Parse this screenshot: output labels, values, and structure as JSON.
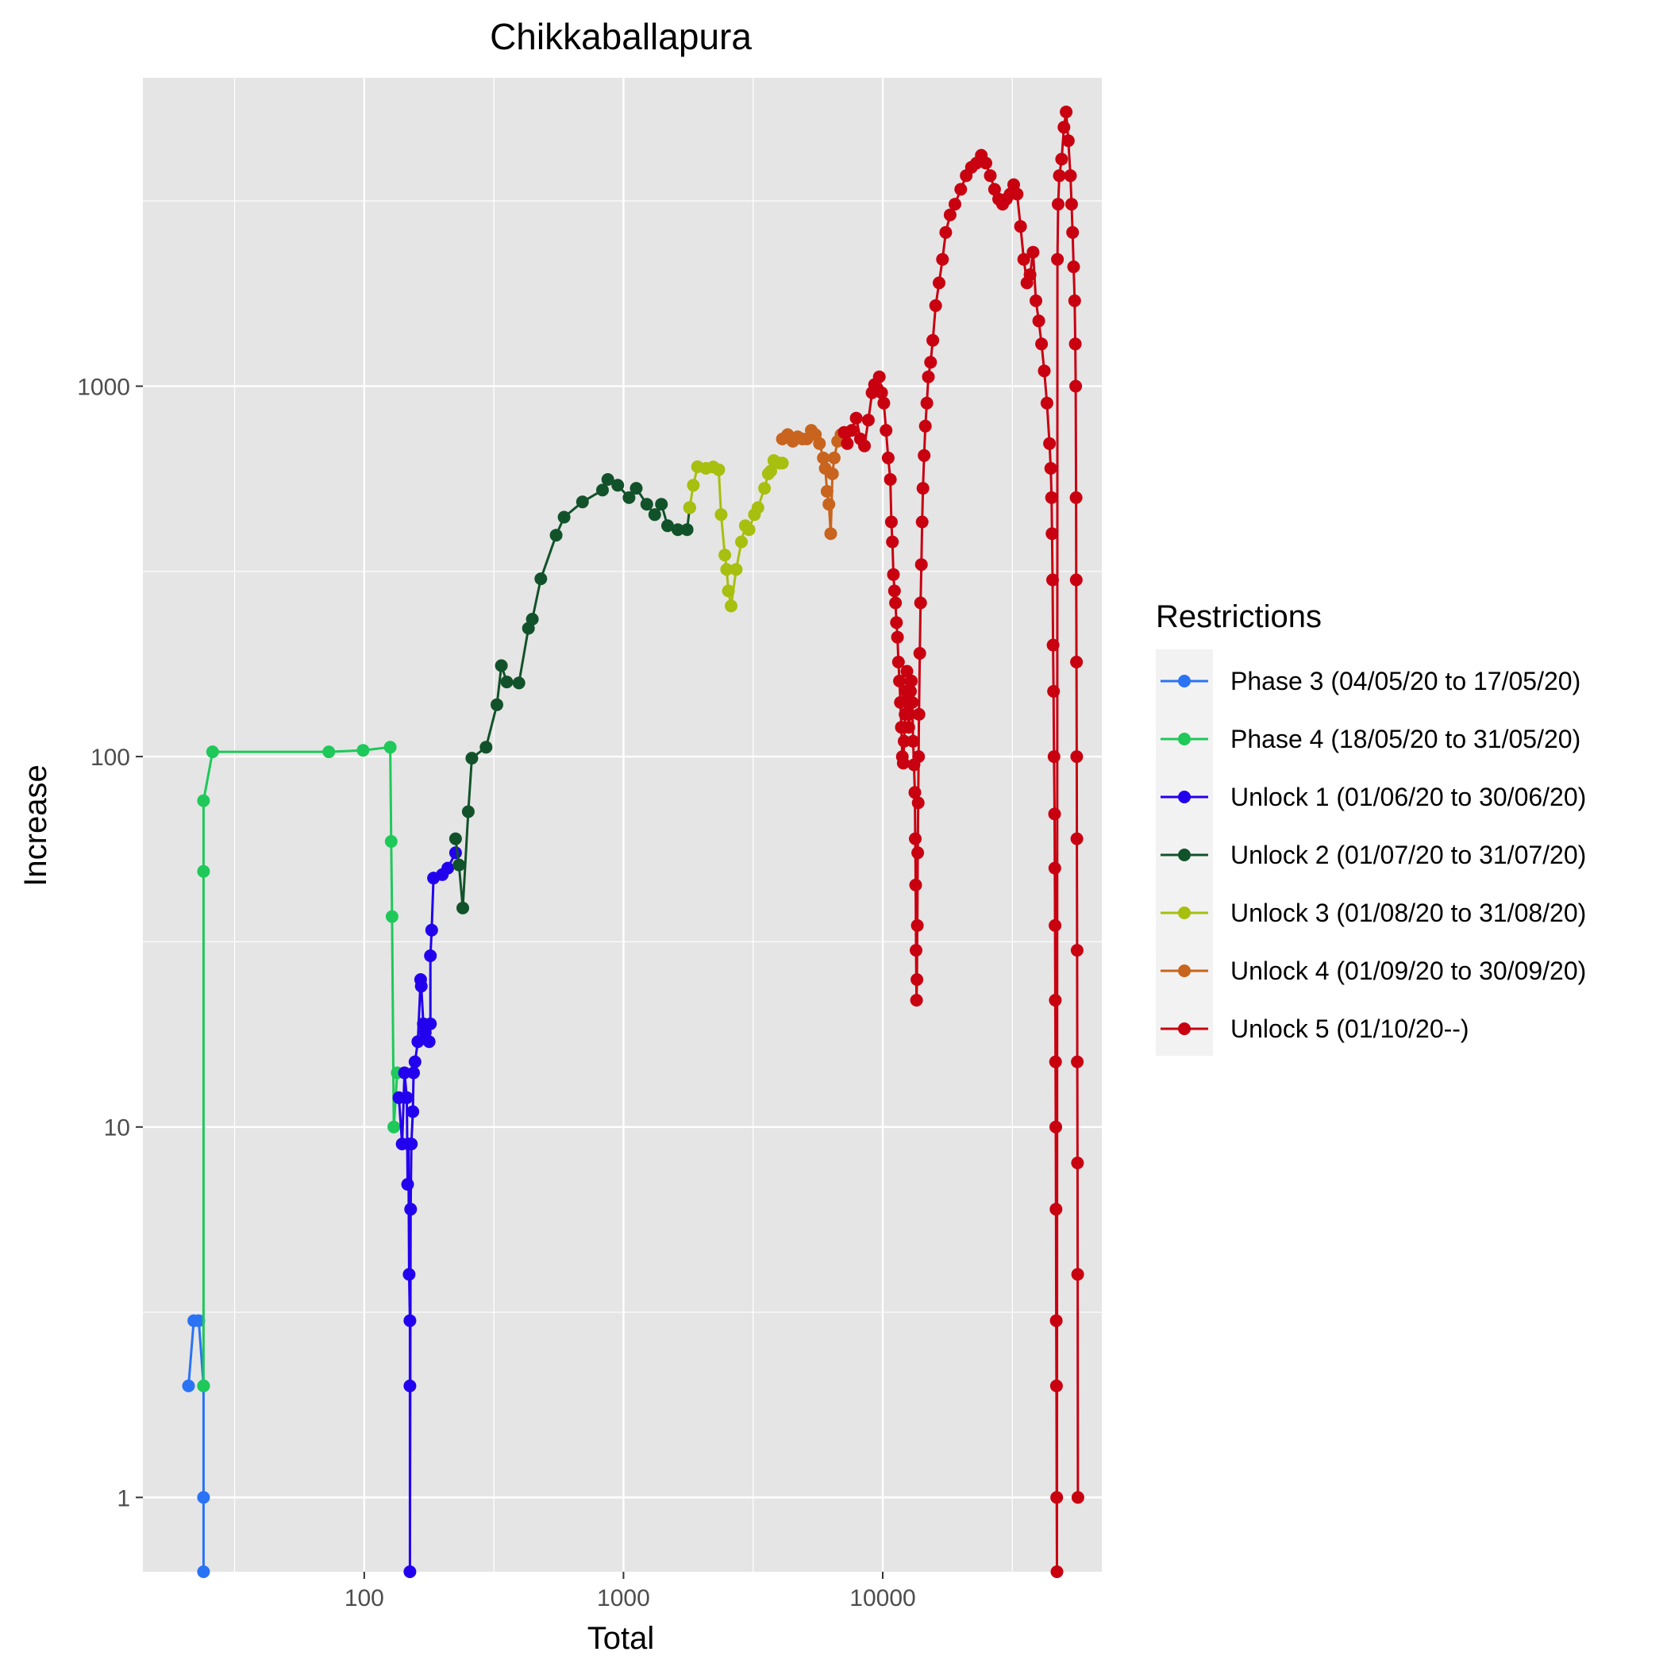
{
  "chart_data": {
    "type": "line",
    "title": "Chikkaballapura",
    "xlabel": "Total",
    "ylabel": "Increase",
    "x_scale": "log10",
    "y_scale": "log10",
    "xlim": [
      14,
      70000
    ],
    "ylim": [
      0.63,
      6800
    ],
    "x_ticks": [
      100,
      1000,
      10000
    ],
    "x_tick_labels": [
      "100",
      "1000",
      "10000"
    ],
    "y_ticks": [
      1,
      10,
      100,
      1000
    ],
    "y_tick_labels": [
      "1",
      "10",
      "100",
      "1000"
    ],
    "grid": true,
    "legend_title": "Restrictions",
    "legend_position": "right",
    "series": [
      {
        "name": "Phase 3 (04/05/20 to 17/05/20)",
        "color": "#2a73f5",
        "points": [
          [
            21,
            2
          ],
          [
            22,
            3
          ],
          [
            23,
            3
          ],
          [
            24,
            2
          ],
          [
            24,
            1
          ],
          [
            24,
            0.63
          ]
        ]
      },
      {
        "name": "Phase 4 (18/05/20 to 31/05/20)",
        "color": "#1ec95a",
        "points": [
          [
            24,
            2
          ],
          [
            24,
            49
          ],
          [
            24,
            76
          ],
          [
            26,
            103
          ],
          [
            73,
            103
          ],
          [
            99,
            104
          ],
          [
            126,
            106
          ],
          [
            127,
            59
          ],
          [
            128,
            37
          ],
          [
            130,
            10
          ],
          [
            134,
            14
          ]
        ]
      },
      {
        "name": "Unlock 1 (01/06/20 to 30/06/20)",
        "color": "#2200ee",
        "points": [
          [
            136,
            12
          ],
          [
            140,
            9
          ],
          [
            143,
            14
          ],
          [
            146,
            12
          ],
          [
            147,
            7
          ],
          [
            148,
            9
          ],
          [
            149,
            4
          ],
          [
            150,
            3
          ],
          [
            150,
            2
          ],
          [
            150,
            0.63
          ],
          [
            151,
            6
          ],
          [
            152,
            9
          ],
          [
            154,
            11
          ],
          [
            155,
            14
          ],
          [
            157,
            15
          ],
          [
            161,
            17
          ],
          [
            165,
            25
          ],
          [
            166,
            24
          ],
          [
            169,
            19
          ],
          [
            172,
            18
          ],
          [
            178,
            17
          ],
          [
            180,
            19
          ],
          [
            180,
            29
          ],
          [
            182,
            34
          ],
          [
            185,
            47
          ],
          [
            200,
            48
          ],
          [
            210,
            50
          ],
          [
            225,
            55
          ]
        ]
      },
      {
        "name": "Unlock 2 (01/07/20 to 31/07/20)",
        "color": "#12522a",
        "points": [
          [
            225,
            60
          ],
          [
            232,
            51
          ],
          [
            240,
            39
          ],
          [
            252,
            71
          ],
          [
            260,
            99
          ],
          [
            295,
            106
          ],
          [
            325,
            138
          ],
          [
            338,
            176
          ],
          [
            355,
            159
          ],
          [
            395,
            158
          ],
          [
            430,
            222
          ],
          [
            445,
            235
          ],
          [
            480,
            302
          ],
          [
            550,
            396
          ],
          [
            590,
            443
          ],
          [
            695,
            487
          ],
          [
            830,
            524
          ],
          [
            870,
            560
          ],
          [
            950,
            540
          ],
          [
            1050,
            500
          ],
          [
            1120,
            530
          ],
          [
            1230,
            480
          ],
          [
            1320,
            450
          ],
          [
            1400,
            480
          ],
          [
            1480,
            420
          ],
          [
            1620,
            410
          ],
          [
            1760,
            410
          ],
          [
            1800,
            470
          ]
        ]
      },
      {
        "name": "Unlock 3 (01/08/20 to 31/08/20)",
        "color": "#a7bf0f",
        "points": [
          [
            1800,
            470
          ],
          [
            1860,
            540
          ],
          [
            1930,
            606
          ],
          [
            2080,
            600
          ],
          [
            2220,
            605
          ],
          [
            2330,
            595
          ],
          [
            2380,
            450
          ],
          [
            2460,
            350
          ],
          [
            2500,
            320
          ],
          [
            2540,
            280
          ],
          [
            2600,
            255
          ],
          [
            2720,
            320
          ],
          [
            2850,
            380
          ],
          [
            2950,
            420
          ],
          [
            3050,
            410
          ],
          [
            3200,
            450
          ],
          [
            3300,
            470
          ],
          [
            3500,
            530
          ],
          [
            3620,
            580
          ],
          [
            3700,
            590
          ],
          [
            3800,
            630
          ],
          [
            4000,
            620
          ],
          [
            4100,
            620
          ]
        ]
      },
      {
        "name": "Unlock 4 (01/09/20 to 30/09/20)",
        "color": "#c8641e",
        "points": [
          [
            4100,
            720
          ],
          [
            4300,
            740
          ],
          [
            4500,
            710
          ],
          [
            4700,
            730
          ],
          [
            4900,
            720
          ],
          [
            5100,
            720
          ],
          [
            5300,
            760
          ],
          [
            5500,
            740
          ],
          [
            5700,
            700
          ],
          [
            5900,
            640
          ],
          [
            6000,
            600
          ],
          [
            6100,
            520
          ],
          [
            6200,
            480
          ],
          [
            6300,
            400
          ],
          [
            6400,
            580
          ],
          [
            6500,
            640
          ],
          [
            6700,
            710
          ],
          [
            6900,
            740
          ],
          [
            7100,
            750
          ]
        ]
      },
      {
        "name": "Unlock 5 (01/10/20--)",
        "color": "#c80010",
        "points": [
          [
            7100,
            750
          ],
          [
            7300,
            700
          ],
          [
            7600,
            760
          ],
          [
            7900,
            820
          ],
          [
            8200,
            720
          ],
          [
            8500,
            690
          ],
          [
            8800,
            810
          ],
          [
            9100,
            960
          ],
          [
            9300,
            1010
          ],
          [
            9500,
            990
          ],
          [
            9700,
            1060
          ],
          [
            9900,
            960
          ],
          [
            10100,
            900
          ],
          [
            10300,
            760
          ],
          [
            10500,
            640
          ],
          [
            10700,
            560
          ],
          [
            10800,
            430
          ],
          [
            10900,
            380
          ],
          [
            11000,
            310
          ],
          [
            11100,
            280
          ],
          [
            11200,
            260
          ],
          [
            11300,
            230
          ],
          [
            11400,
            210
          ],
          [
            11500,
            180
          ],
          [
            11600,
            160
          ],
          [
            11700,
            140
          ],
          [
            11800,
            120
          ],
          [
            11900,
            100
          ],
          [
            12000,
            96
          ],
          [
            12100,
            110
          ],
          [
            12200,
            130
          ],
          [
            12300,
            150
          ],
          [
            12400,
            170
          ],
          [
            12500,
            140
          ],
          [
            12600,
            120
          ],
          [
            12700,
            130
          ],
          [
            12800,
            150
          ],
          [
            12900,
            160
          ],
          [
            13000,
            140
          ],
          [
            13100,
            110
          ],
          [
            13200,
            95
          ],
          [
            13300,
            80
          ],
          [
            13350,
            60
          ],
          [
            13400,
            45
          ],
          [
            13450,
            30
          ],
          [
            13500,
            22
          ],
          [
            13550,
            25
          ],
          [
            13600,
            35
          ],
          [
            13650,
            55
          ],
          [
            13700,
            75
          ],
          [
            13750,
            100
          ],
          [
            13800,
            130
          ],
          [
            13900,
            190
          ],
          [
            14000,
            260
          ],
          [
            14100,
            330
          ],
          [
            14200,
            430
          ],
          [
            14300,
            530
          ],
          [
            14450,
            650
          ],
          [
            14600,
            780
          ],
          [
            14800,
            900
          ],
          [
            15000,
            1060
          ],
          [
            15300,
            1160
          ],
          [
            15600,
            1330
          ],
          [
            16000,
            1650
          ],
          [
            16500,
            1900
          ],
          [
            17000,
            2200
          ],
          [
            17500,
            2600
          ],
          [
            18200,
            2900
          ],
          [
            19000,
            3100
          ],
          [
            20000,
            3400
          ],
          [
            21000,
            3700
          ],
          [
            22000,
            3900
          ],
          [
            23000,
            4000
          ],
          [
            24000,
            4200
          ],
          [
            25000,
            4000
          ],
          [
            26000,
            3700
          ],
          [
            27000,
            3400
          ],
          [
            28000,
            3200
          ],
          [
            29000,
            3100
          ],
          [
            30000,
            3200
          ],
          [
            31000,
            3300
          ],
          [
            32000,
            3500
          ],
          [
            33000,
            3300
          ],
          [
            34000,
            2700
          ],
          [
            35000,
            2200
          ],
          [
            36000,
            1900
          ],
          [
            37000,
            2000
          ],
          [
            38000,
            2300
          ],
          [
            39000,
            1700
          ],
          [
            40000,
            1500
          ],
          [
            41000,
            1300
          ],
          [
            42000,
            1100
          ],
          [
            43000,
            900
          ],
          [
            44000,
            700
          ],
          [
            44500,
            600
          ],
          [
            44800,
            500
          ],
          [
            45000,
            400
          ],
          [
            45200,
            300
          ],
          [
            45400,
            200
          ],
          [
            45600,
            150
          ],
          [
            45800,
            100
          ],
          [
            46000,
            70
          ],
          [
            46100,
            50
          ],
          [
            46200,
            35
          ],
          [
            46300,
            22
          ],
          [
            46400,
            15
          ],
          [
            46500,
            10
          ],
          [
            46600,
            6
          ],
          [
            46700,
            3
          ],
          [
            46800,
            2
          ],
          [
            46900,
            1
          ],
          [
            47000,
            0.63
          ],
          [
            47200,
            2200
          ],
          [
            47500,
            3100
          ],
          [
            48000,
            3700
          ],
          [
            49000,
            4100
          ],
          [
            50000,
            5000
          ],
          [
            51000,
            5500
          ],
          [
            52000,
            4600
          ],
          [
            53000,
            3700
          ],
          [
            53500,
            3100
          ],
          [
            54000,
            2600
          ],
          [
            54500,
            2100
          ],
          [
            55000,
            1700
          ],
          [
            55300,
            1300
          ],
          [
            55500,
            1000
          ],
          [
            55700,
            500
          ],
          [
            55800,
            300
          ],
          [
            55900,
            180
          ],
          [
            56000,
            100
          ],
          [
            56100,
            60
          ],
          [
            56200,
            30
          ],
          [
            56300,
            15
          ],
          [
            56400,
            8
          ],
          [
            56500,
            4
          ],
          [
            56600,
            1
          ]
        ]
      }
    ]
  }
}
